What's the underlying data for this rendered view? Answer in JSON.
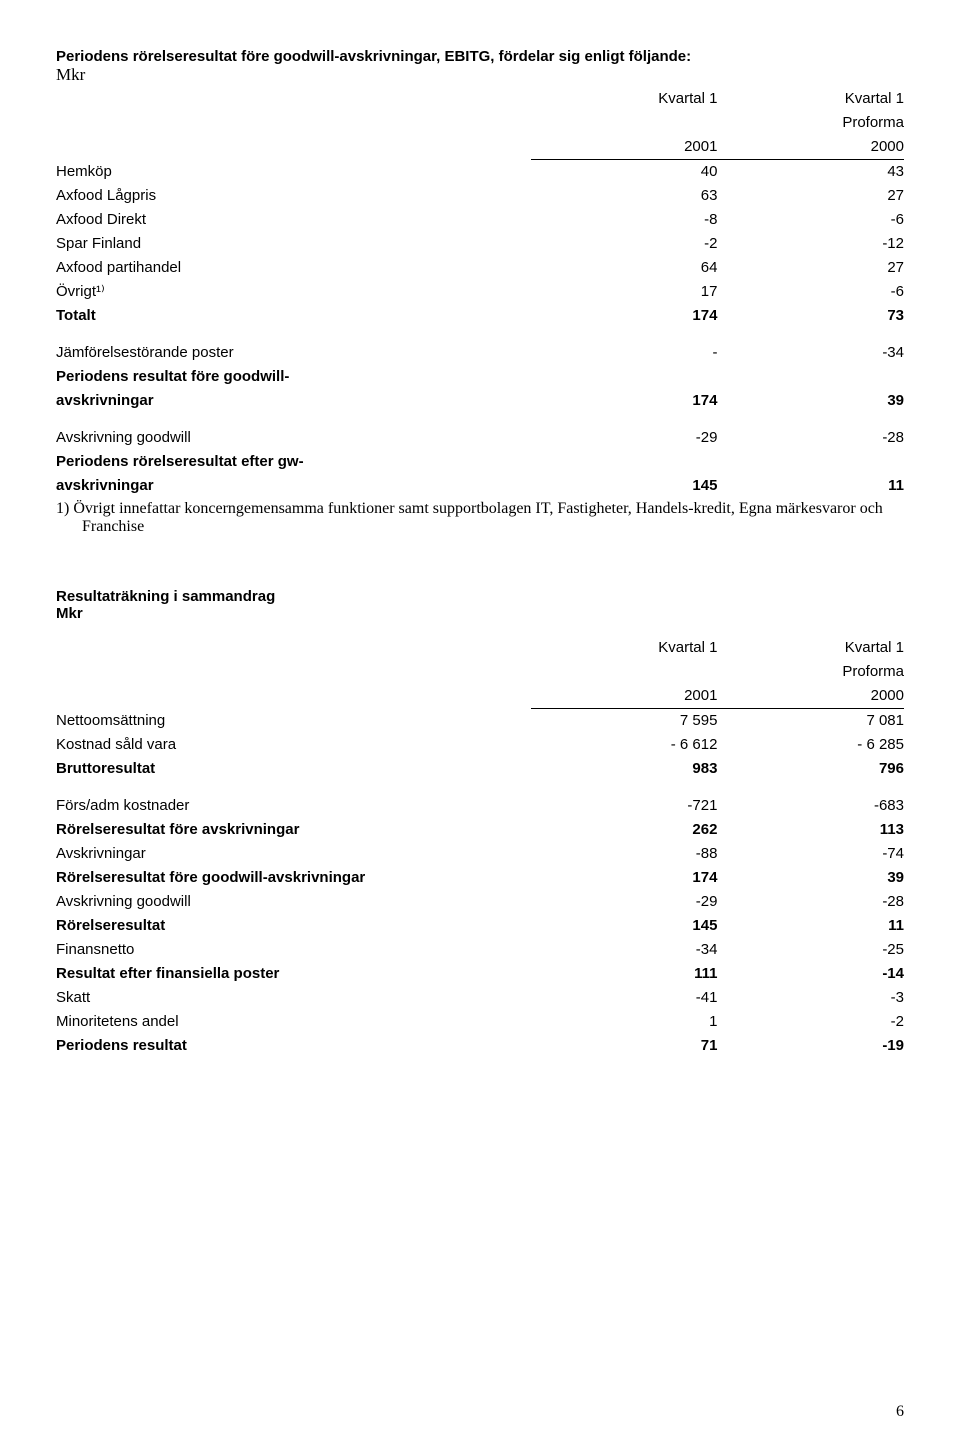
{
  "table1": {
    "title": "Periodens rörelseresultat före goodwill-avskrivningar, EBITG, fördelar sig enligt följande:",
    "mkr": "Mkr",
    "headers": {
      "c1_line1": "Kvartal 1",
      "c2_line1": "Kvartal 1",
      "c2_line2": "Proforma",
      "c1_year": "2001",
      "c2_year": "2000"
    },
    "rows": [
      {
        "label": "Hemköp",
        "v1": "40",
        "v2": "43",
        "bold": false
      },
      {
        "label": "Axfood Lågpris",
        "v1": "63",
        "v2": "27",
        "bold": false
      },
      {
        "label": "Axfood Direkt",
        "v1": "-8",
        "v2": "-6",
        "bold": false
      },
      {
        "label": "Spar Finland",
        "v1": "-2",
        "v2": "-12",
        "bold": false
      },
      {
        "label": "Axfood partihandel",
        "v1": "64",
        "v2": "27",
        "bold": false
      },
      {
        "label": "Övrigt¹⁾",
        "v1": "17",
        "v2": "-6",
        "bold": false
      },
      {
        "label": "Totalt",
        "v1": "174",
        "v2": "73",
        "bold": true
      }
    ],
    "rows2": [
      {
        "label": "Jämförelsestörande poster",
        "v1": "-",
        "v2": "-34",
        "bold": false
      },
      {
        "label_l1": "Periodens resultat före goodwill-",
        "label_l2": "avskrivningar",
        "v1": "174",
        "v2": "39",
        "bold": true,
        "twoline": true
      }
    ],
    "rows3": [
      {
        "label": "Avskrivning goodwill",
        "v1": "-29",
        "v2": "-28",
        "bold": false
      },
      {
        "label_l1": "Periodens rörelseresultat efter gw-",
        "label_l2": "avskrivningar",
        "v1": "145",
        "v2": "11",
        "bold": true,
        "twoline": true
      }
    ],
    "footnote": "1)  Övrigt innefattar koncerngemensamma funktioner samt supportbolagen IT, Fastigheter, Handels-kredit, Egna märkesvaror och Franchise"
  },
  "table2": {
    "title": "Resultaträkning i sammandrag",
    "mkr": "Mkr",
    "headers": {
      "c1_line1": "Kvartal 1",
      "c2_line1": "Kvartal 1",
      "c2_line2": "Proforma",
      "c1_year": "2001",
      "c2_year": "2000"
    },
    "rows": [
      {
        "label": "Nettoomsättning",
        "v1": "7 595",
        "v2": "7 081",
        "bold": false
      },
      {
        "label": "Kostnad såld vara",
        "v1": "- 6 612",
        "v2": "- 6 285",
        "bold": false
      },
      {
        "label": "Bruttoresultat",
        "v1": "983",
        "v2": "796",
        "bold": true
      }
    ],
    "rows2": [
      {
        "label": "Förs/adm kostnader",
        "v1": "-721",
        "v2": "-683",
        "bold": false
      },
      {
        "label": "Rörelseresultat före avskrivningar",
        "v1": "262",
        "v2": "113",
        "bold": true
      },
      {
        "label": "Avskrivningar",
        "v1": "-88",
        "v2": "-74",
        "bold": false
      },
      {
        "label": "Rörelseresultat före goodwill-avskrivningar",
        "v1": "174",
        "v2": "39",
        "bold": true
      },
      {
        "label": "Avskrivning goodwill",
        "v1": "-29",
        "v2": "-28",
        "bold": false
      },
      {
        "label": "Rörelseresultat",
        "v1": "145",
        "v2": "11",
        "bold": true
      },
      {
        "label": "Finansnetto",
        "v1": "-34",
        "v2": "-25",
        "bold": false
      },
      {
        "label": "Resultat efter finansiella poster",
        "v1": "111",
        "v2": "-14",
        "bold": true
      },
      {
        "label": "Skatt",
        "v1": "-41",
        "v2": "-3",
        "bold": false
      },
      {
        "label": "Minoritetens andel",
        "v1": "1",
        "v2": "-2",
        "bold": false
      },
      {
        "label": "Periodens resultat",
        "v1": "71",
        "v2": "-19",
        "bold": true
      }
    ]
  },
  "page": "6",
  "style": {
    "line_height_row": "22px"
  }
}
